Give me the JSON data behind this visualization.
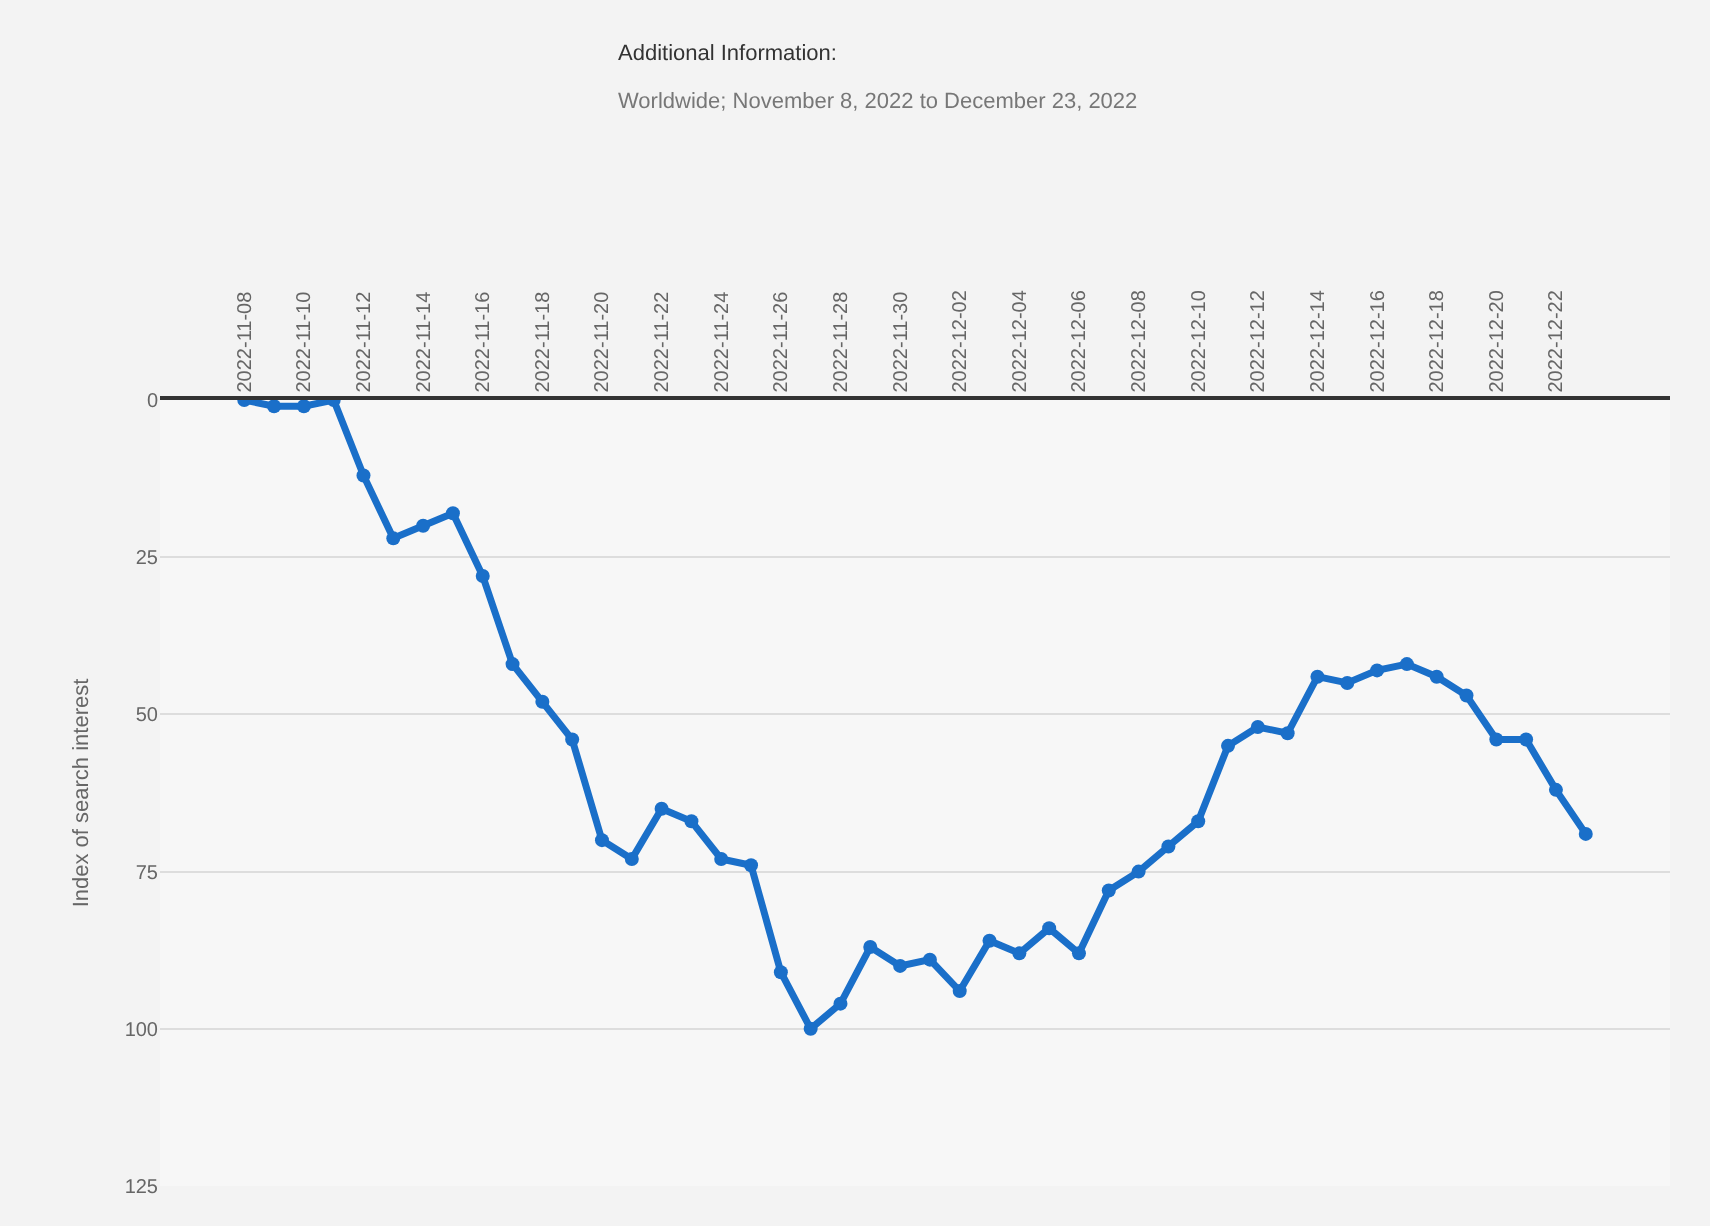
{
  "chart_data": {
    "type": "line",
    "annotations": [
      "Additional Information:",
      "Worldwide; November 8, 2022 to December 23, 2022"
    ],
    "ylabel": "Index of search interest",
    "categories": [
      "2022-11-08",
      null,
      "2022-11-10",
      null,
      "2022-11-12",
      null,
      "2022-11-14",
      null,
      "2022-11-16",
      null,
      "2022-11-18",
      null,
      "2022-11-20",
      null,
      "2022-11-22",
      null,
      "2022-11-24",
      null,
      "2022-11-26",
      null,
      "2022-11-28",
      null,
      "2022-11-30",
      null,
      "2022-12-02",
      null,
      "2022-12-04",
      null,
      "2022-12-06",
      null,
      "2022-12-08",
      null,
      "2022-12-10",
      null,
      "2022-12-12",
      null,
      "2022-12-14",
      null,
      "2022-12-16",
      null,
      "2022-12-18",
      null,
      "2022-12-20",
      null,
      "2022-12-22",
      null
    ],
    "series": [
      {
        "color": "#1a6fc9",
        "values": [
          0,
          1,
          1,
          0,
          12,
          22,
          20,
          18,
          28,
          42,
          48,
          54,
          70,
          73,
          65,
          67,
          73,
          74,
          91,
          100,
          96,
          87,
          90,
          89,
          94,
          86,
          88,
          84,
          88,
          78,
          75,
          71,
          67,
          55,
          52,
          53,
          44,
          45,
          43,
          42,
          44,
          47,
          54,
          54,
          62,
          69
        ]
      }
    ],
    "ylim": [
      125,
      0
    ],
    "yticks": [
      0,
      25,
      50,
      75,
      100,
      125
    ],
    "grid": "y",
    "marker": "circle",
    "line_style": "solid"
  }
}
